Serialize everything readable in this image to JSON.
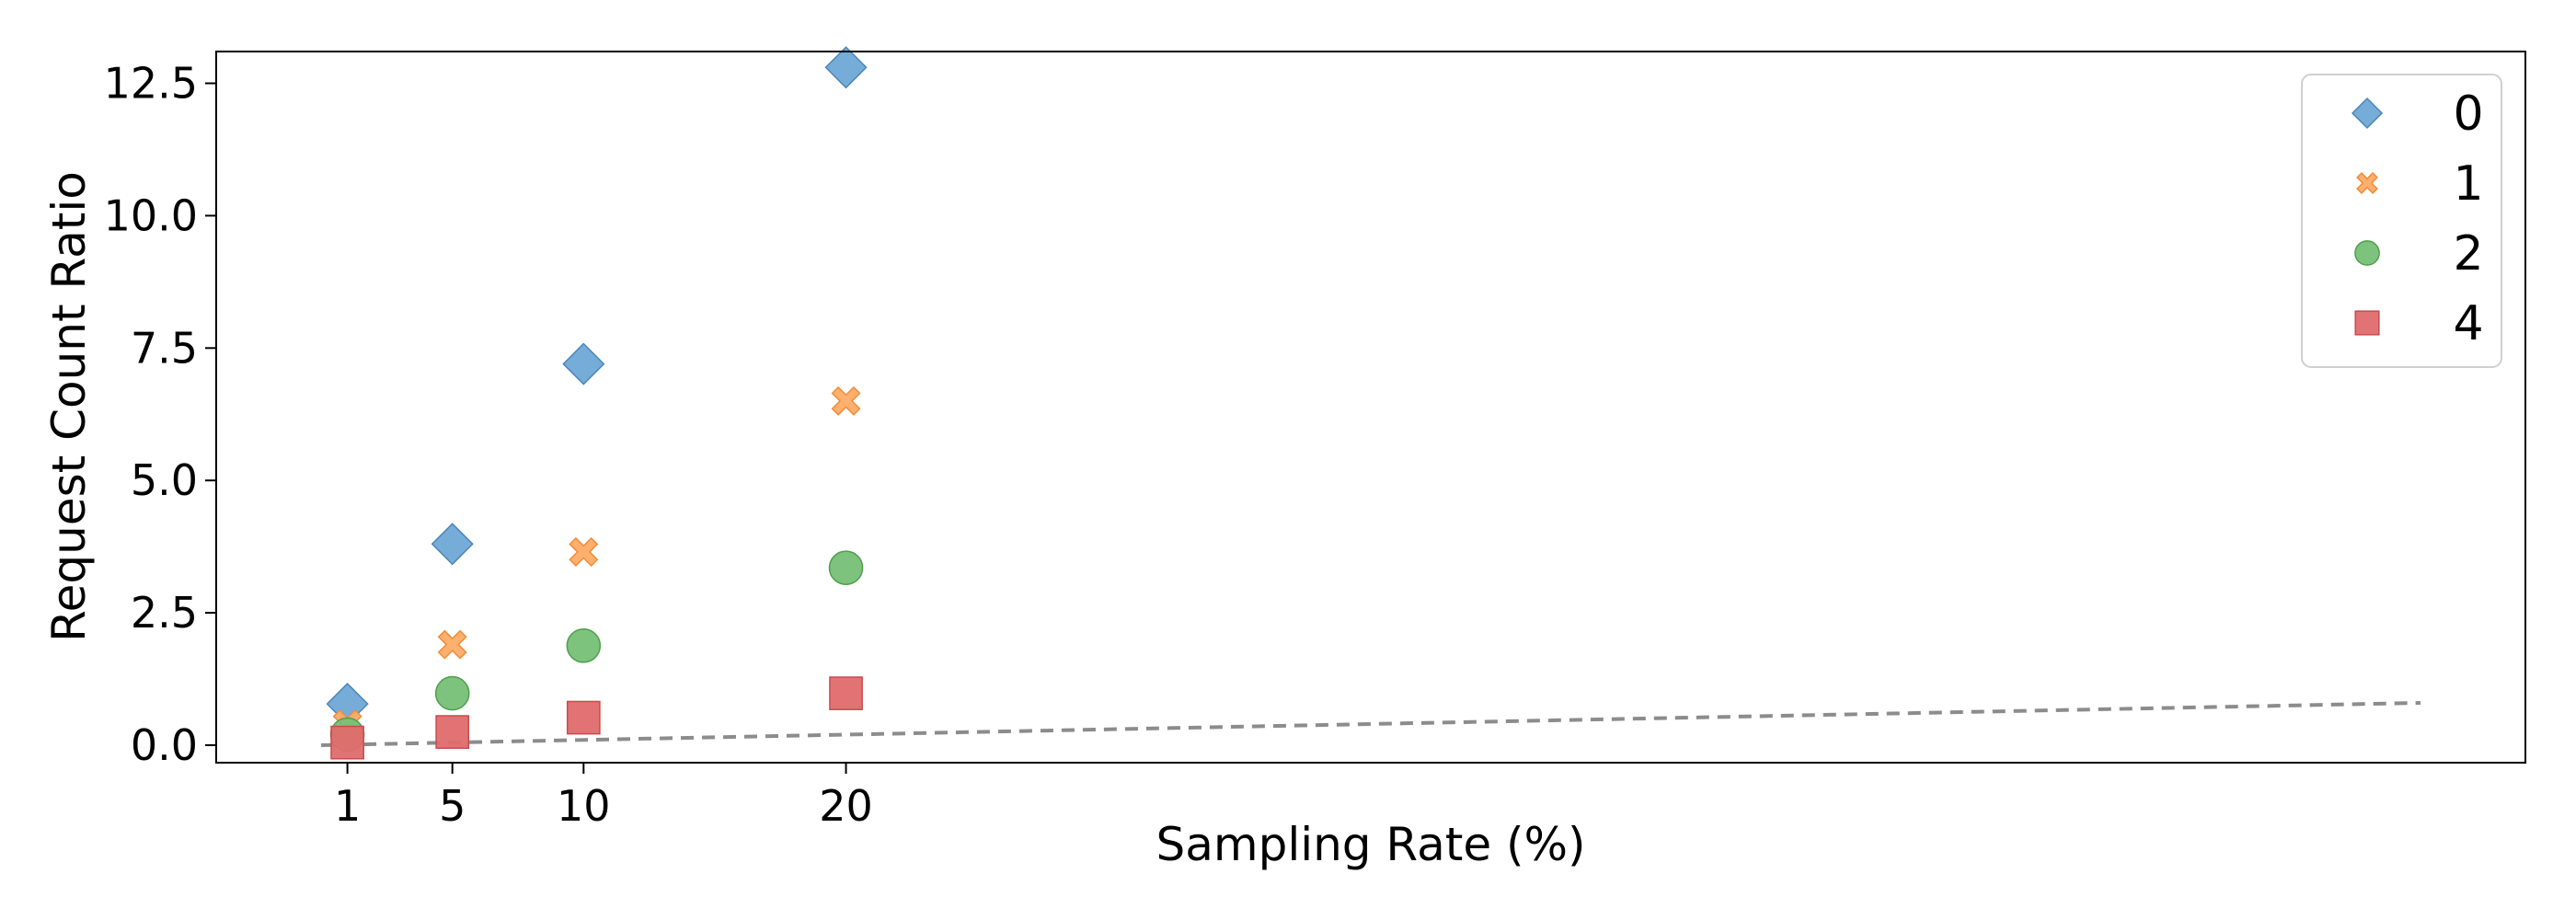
{
  "chart_data": {
    "type": "scatter",
    "title": "",
    "xlabel": "Sampling Rate (%)",
    "ylabel": "Request Count Ratio",
    "x_ticks": [
      1,
      5,
      10,
      20
    ],
    "x_tick_labels": [
      "1",
      "5",
      "10",
      "20"
    ],
    "y_ticks": [
      0.0,
      2.5,
      5.0,
      7.5,
      10.0,
      12.5
    ],
    "y_tick_labels": [
      "0.0",
      "2.5",
      "5.0",
      "7.5",
      "10.0",
      "12.5"
    ],
    "xlim": [
      -4,
      84
    ],
    "ylim": [
      -0.33,
      13.1
    ],
    "grid": false,
    "legend_position": "top-right",
    "series": [
      {
        "name": "0",
        "marker": "diamond",
        "color": "#6fa8d6",
        "edge": "#4a86b8",
        "x": [
          1,
          5,
          10,
          20
        ],
        "y": [
          0.78,
          3.8,
          7.2,
          12.8
        ]
      },
      {
        "name": "1",
        "marker": "x",
        "color": "#ffab66",
        "edge": "#f08d3a",
        "x": [
          1,
          5,
          10,
          20
        ],
        "y": [
          0.4,
          1.9,
          3.65,
          6.5
        ]
      },
      {
        "name": "2",
        "marker": "circle",
        "color": "#76c076",
        "edge": "#4f9f4f",
        "x": [
          1,
          5,
          10,
          20
        ],
        "y": [
          0.2,
          0.98,
          1.88,
          3.35
        ]
      },
      {
        "name": "4",
        "marker": "square",
        "color": "#e06b6d",
        "edge": "#c94a4c",
        "x": [
          1,
          5,
          10,
          20
        ],
        "y": [
          0.05,
          0.25,
          0.52,
          0.98
        ]
      }
    ],
    "reference_line": {
      "style": "dashed",
      "color": "#8c8c8c",
      "x": [
        0,
        80
      ],
      "y": [
        0,
        0.8
      ]
    }
  }
}
